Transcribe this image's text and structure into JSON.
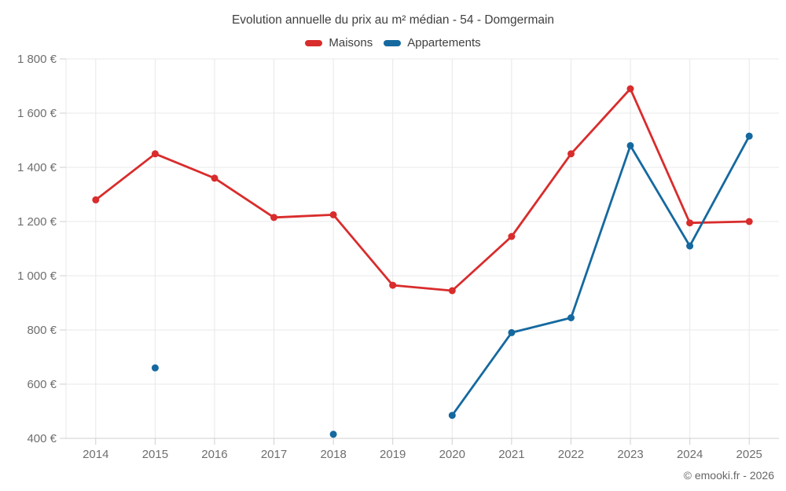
{
  "header": {
    "title": "Evolution annuelle du prix au m² médian - 54 - Domgermain"
  },
  "legend": {
    "items": [
      {
        "label": "Maisons",
        "color": "#d92c2c"
      },
      {
        "label": "Appartements",
        "color": "#15699f"
      }
    ]
  },
  "footer": {
    "credit": "© emooki.fr - 2026"
  },
  "chart_data": {
    "type": "line",
    "title": "Evolution annuelle du prix au m² médian - 54 - Domgermain",
    "categories": [
      "2014",
      "2015",
      "2016",
      "2017",
      "2018",
      "2019",
      "2020",
      "2021",
      "2022",
      "2023",
      "2024",
      "2025"
    ],
    "series": [
      {
        "name": "Maisons",
        "color": "#d92c2c",
        "values": [
          1280,
          1450,
          1360,
          1215,
          1225,
          965,
          945,
          1145,
          1450,
          1690,
          1195,
          1200
        ]
      },
      {
        "name": "Appartements",
        "color": "#15699f",
        "values": [
          null,
          660,
          null,
          null,
          415,
          null,
          485,
          790,
          845,
          1480,
          1110,
          1515
        ]
      }
    ],
    "y_ticks": [
      {
        "value": 400,
        "label": "400 €"
      },
      {
        "value": 600,
        "label": "600 €"
      },
      {
        "value": 800,
        "label": "800 €"
      },
      {
        "value": 1000,
        "label": "1 000 €"
      },
      {
        "value": 1200,
        "label": "1 200 €"
      },
      {
        "value": 1400,
        "label": "1 400 €"
      },
      {
        "value": 1600,
        "label": "1 600 €"
      },
      {
        "value": 1800,
        "label": "1 800 €"
      }
    ],
    "ylim": [
      400,
      1800
    ],
    "grid": true,
    "legend_position": "top",
    "axis_text_color": "#6e6e6e",
    "grid_color": "#e8e8e8",
    "axis_line_color": "#cfcfcf",
    "background_color": "#ffffff"
  }
}
